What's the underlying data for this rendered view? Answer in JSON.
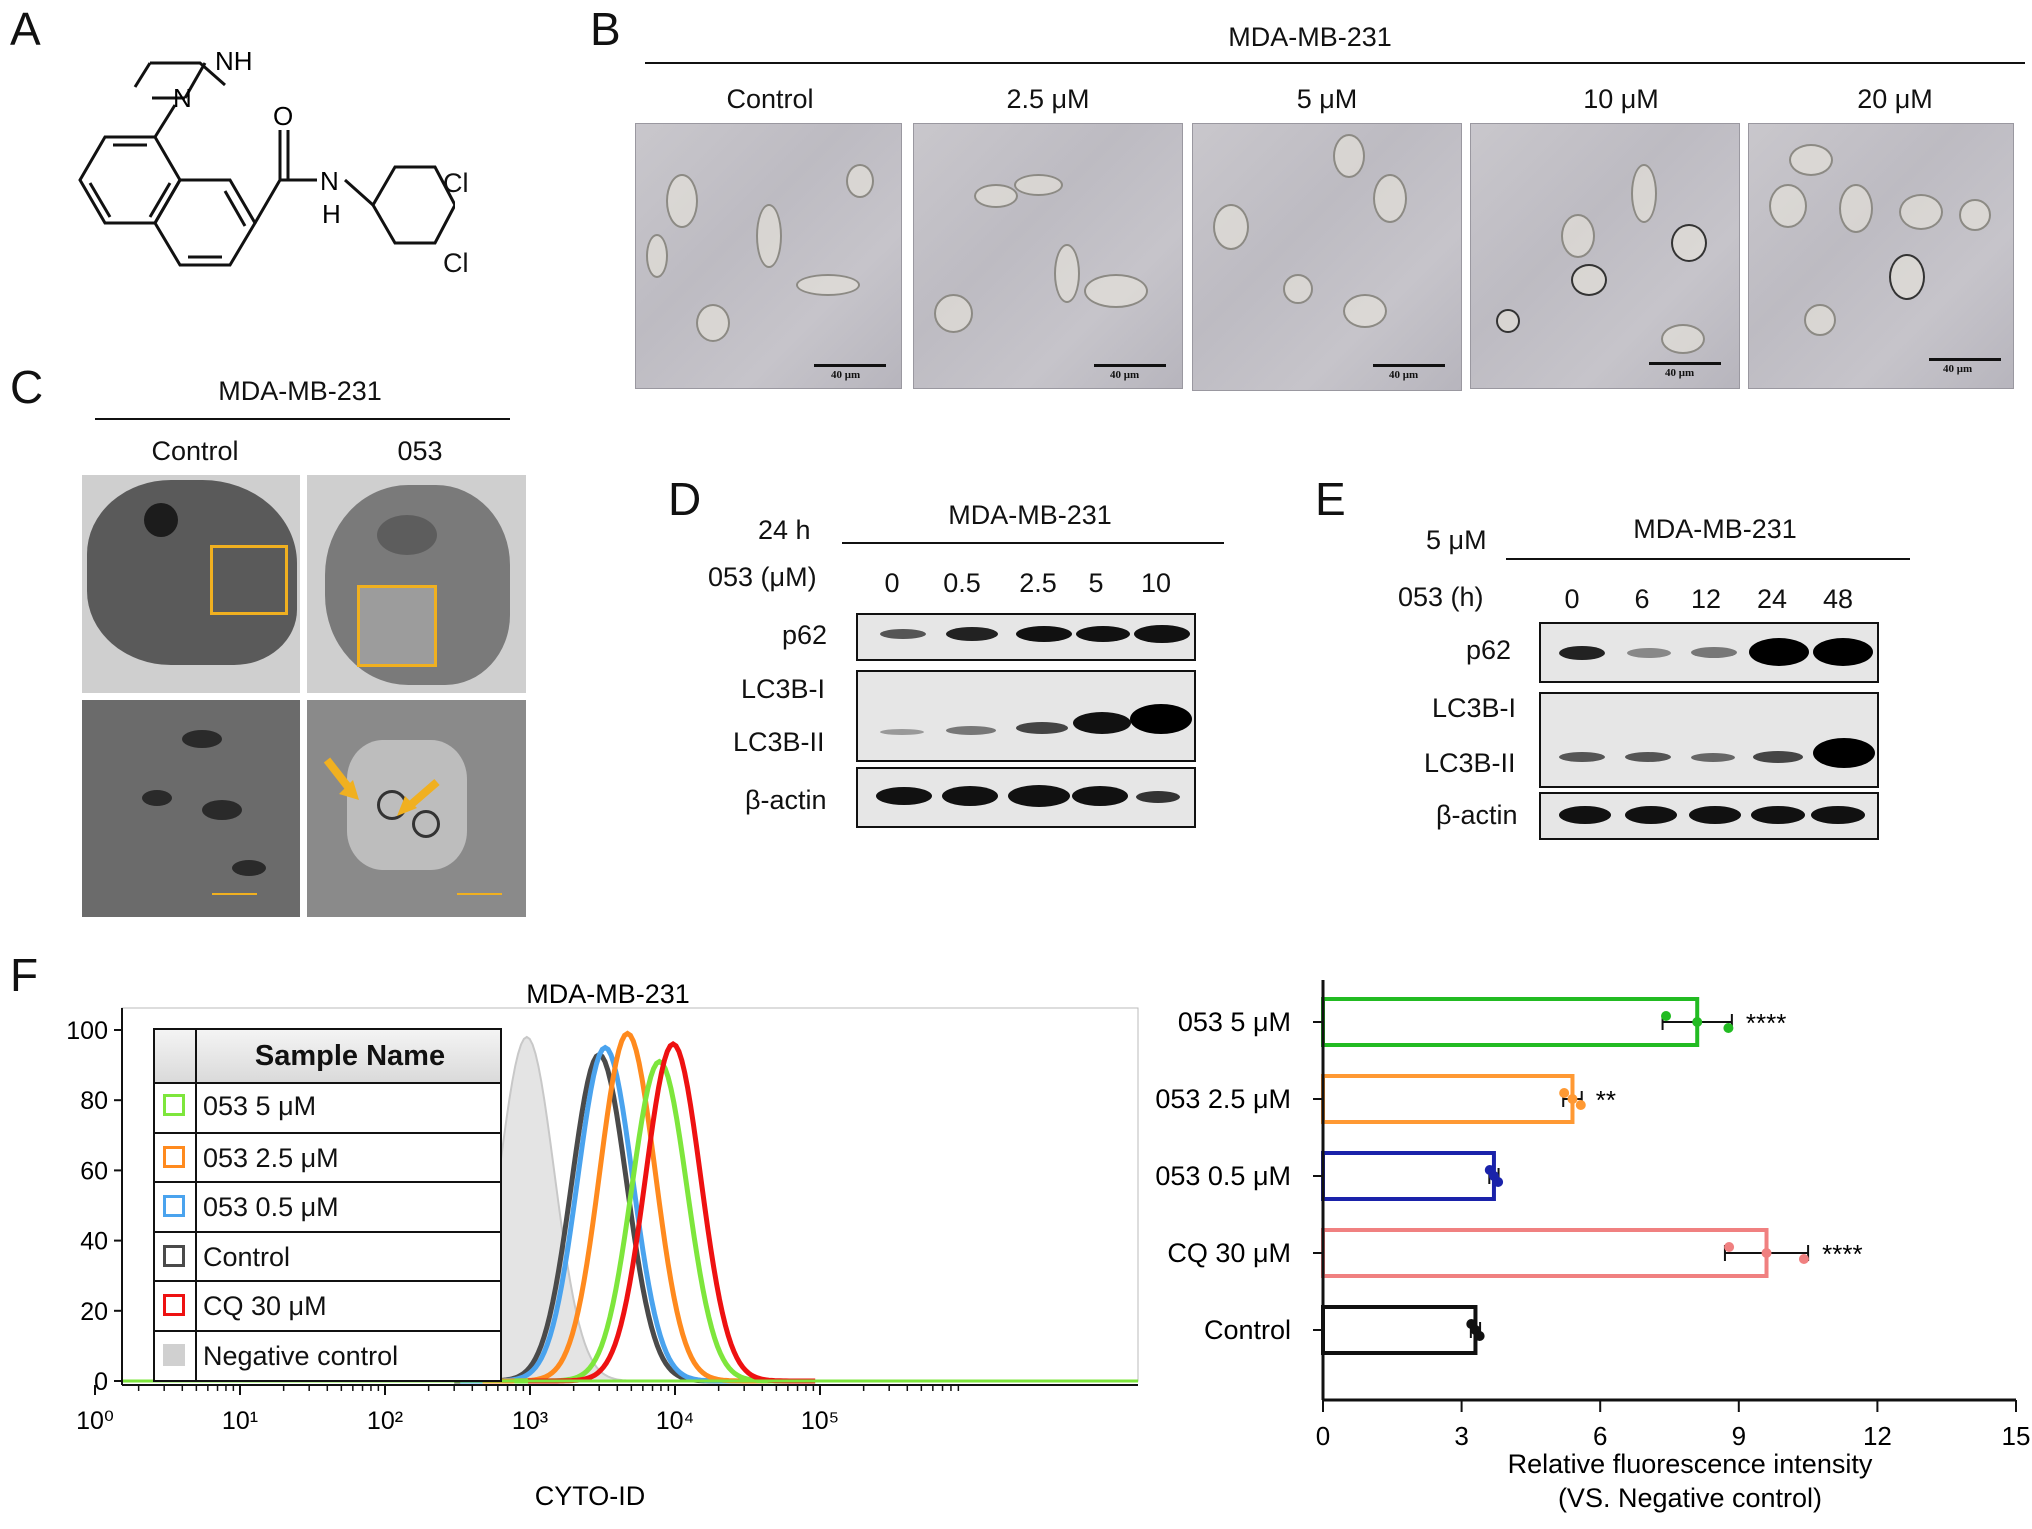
{
  "panels": {
    "A": "A",
    "B": "B",
    "C": "C",
    "D": "D",
    "E": "E",
    "F": "F"
  },
  "panelA": {
    "atoms": {
      "nh": "NH",
      "n": "N",
      "o": "O",
      "amide_n": "N",
      "amide_h": "H",
      "cl1": "Cl",
      "cl2": "Cl"
    }
  },
  "panelB": {
    "cell_line": "MDA-MB-231",
    "conditions": [
      "Control",
      "2.5 μM",
      "5 μM",
      "10 μM",
      "20 μM"
    ],
    "scale_bar": "40 μm"
  },
  "panelC": {
    "cell_line": "MDA-MB-231",
    "conditions": [
      "Control",
      "053"
    ]
  },
  "panelD": {
    "time": "24 h",
    "cell_line": "MDA-MB-231",
    "dose_label": "053 (μM)",
    "doses": [
      "0",
      "0.5",
      "2.5",
      "5",
      "10"
    ],
    "rows": [
      "p62",
      "LC3B-I",
      "LC3B-II",
      "β-actin"
    ]
  },
  "panelE": {
    "dose": "5 μM",
    "cell_line": "MDA-MB-231",
    "time_label": "053 (h)",
    "times": [
      "0",
      "6",
      "12",
      "24",
      "48"
    ],
    "rows": [
      "p62",
      "LC3B-I",
      "LC3B-II",
      "β-actin"
    ]
  },
  "chart_data": [
    {
      "type": "line",
      "title": "MDA-MB-231",
      "xlabel": "CYTO-ID",
      "ylabel": "",
      "x_scale": "log",
      "xlim": [
        1,
        200000
      ],
      "ylim": [
        0,
        100
      ],
      "x_tick_labels": [
        "10⁰",
        "10¹",
        "10²",
        "10³",
        "10⁴",
        "10⁵"
      ],
      "y_ticks": [
        0,
        20,
        40,
        60,
        80,
        100
      ],
      "legend_title": "Sample Name",
      "legend_position": "top-left",
      "series": [
        {
          "name": "053 5 μM",
          "color": "#7ee63c",
          "peak_x": 7800,
          "peak_y": 91
        },
        {
          "name": "053 2.5 μM",
          "color": "#ff8a1e",
          "peak_x": 4700,
          "peak_y": 99
        },
        {
          "name": "053 0.5 μM",
          "color": "#4aa3ee",
          "peak_x": 3300,
          "peak_y": 95
        },
        {
          "name": "Control",
          "color": "#4a4a4a",
          "peak_x": 3000,
          "peak_y": 93
        },
        {
          "name": "CQ 30 μM",
          "color": "#ee1111",
          "peak_x": 9700,
          "peak_y": 96
        },
        {
          "name": "Negative control",
          "color": "#d0d0d0",
          "peak_x": 950,
          "peak_y": 98
        }
      ]
    },
    {
      "type": "bar",
      "orientation": "horizontal",
      "categories": [
        "053 5 μM",
        "053 2.5 μM",
        "053 0.5 μM",
        "CQ 30 μM",
        "Control"
      ],
      "values": [
        8.1,
        5.4,
        3.7,
        9.6,
        3.3
      ],
      "errors": [
        0.75,
        0.2,
        0.1,
        0.9,
        0.1
      ],
      "colors": [
        "#22bb22",
        "#ff9933",
        "#1a22aa",
        "#f08080",
        "#111111"
      ],
      "significance": [
        "****",
        "**",
        "",
        "****",
        ""
      ],
      "xlabel": "Relative fluorescence intensity",
      "xlabel2": "(VS. Negative control)",
      "xlim": [
        0,
        15
      ],
      "x_ticks": [
        0,
        3,
        6,
        9,
        12,
        15
      ]
    }
  ]
}
